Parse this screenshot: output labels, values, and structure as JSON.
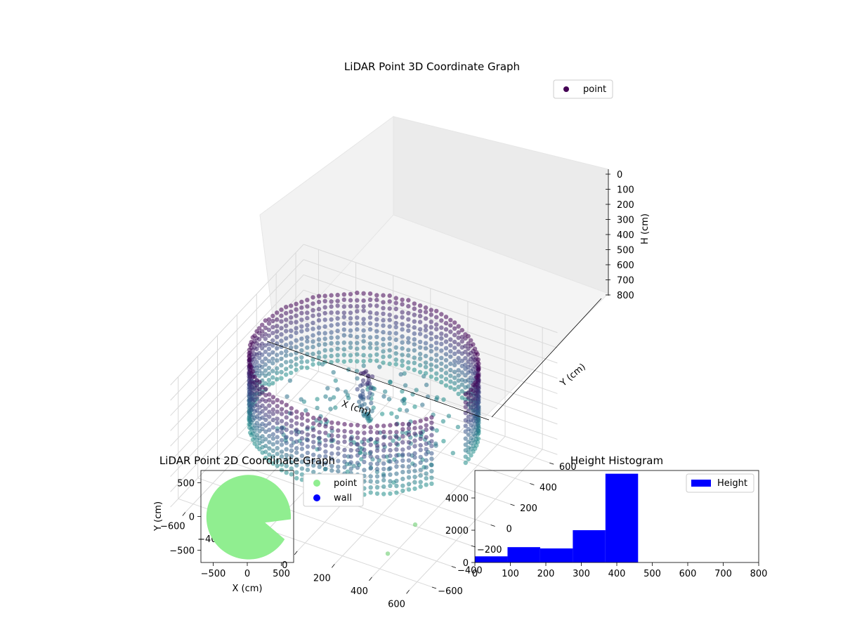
{
  "figure": {
    "colors": {
      "point_low": "#440154",
      "point_mid": "#3b528b",
      "point_high": "#21918c",
      "stray_point": "#5ec962",
      "pane": "#f2f2f2",
      "grid": "#d9d9d9",
      "point_2d": "#90ee90",
      "wall_2d": "#0000ff",
      "histogram": "#0000ff"
    }
  },
  "chart_data": [
    {
      "type": "scatter",
      "title": "LiDAR Point 3D Coordinate Graph",
      "projection": "3d",
      "xlabel": "X (cm)",
      "ylabel": "Y (cm)",
      "zlabel": "H (cm)",
      "xlim": [
        -680,
        680
      ],
      "ylim": [
        -680,
        680
      ],
      "zlim": [
        800,
        0
      ],
      "z_axis_inverted": true,
      "xticks": [
        "−600",
        "−400",
        "−200",
        "0",
        "200",
        "400",
        "600"
      ],
      "yticks": [
        "−600",
        "−400",
        "−200",
        "0",
        "200",
        "400",
        "600"
      ],
      "zticks": [
        "0",
        "100",
        "200",
        "300",
        "400",
        "500",
        "600",
        "700",
        "800"
      ],
      "colormap": "viridis",
      "grid": true,
      "legend": {
        "placement": "top-right",
        "entries": [
          "point"
        ]
      },
      "series": [
        {
          "name": "point",
          "description_of_shape": "ring-shaped wall of points at radius ~550 cm spanning heights ~0–460 cm with a central column",
          "sample_points": [
            {
              "x": 550,
              "y": 0,
              "h": 460
            },
            {
              "x": 0,
              "y": 550,
              "h": 460
            },
            {
              "x": -550,
              "y": 0,
              "h": 460
            },
            {
              "x": 0,
              "y": -550,
              "h": 460
            },
            {
              "x": 0,
              "y": 0,
              "h": 100
            },
            {
              "x": 0,
              "y": 0,
              "h": 300
            },
            {
              "x": 380,
              "y": -200,
              "h": 790
            },
            {
              "x": 380,
              "y": -480,
              "h": 790
            }
          ]
        }
      ]
    },
    {
      "type": "scatter",
      "title": "LiDAR Point 2D Coordinate Graph",
      "xlabel": "X (cm)",
      "ylabel": "Y (cm)",
      "xlim": [
        -680,
        680
      ],
      "ylim": [
        -680,
        680
      ],
      "xticks": [
        "−500",
        "0",
        "500"
      ],
      "yticks": [
        "500",
        "0",
        "−500"
      ],
      "legend": {
        "placement": "outside-right",
        "entries": [
          "point",
          "wall"
        ]
      },
      "series": [
        {
          "name": "point",
          "shape": "filled disc radius ~620 centered near (20, -20) with a notch toward +x"
        },
        {
          "name": "wall",
          "values": []
        }
      ]
    },
    {
      "type": "bar",
      "title": "Height Histogram",
      "xlabel": "",
      "ylabel": "",
      "xlim": [
        0,
        800
      ],
      "ylim": [
        0,
        5700
      ],
      "xticks": [
        "0",
        "100",
        "200",
        "300",
        "400",
        "500",
        "600",
        "700",
        "800"
      ],
      "yticks": [
        "0",
        "2000",
        "4000"
      ],
      "legend": {
        "placement": "top-right",
        "entries": [
          "Height"
        ]
      },
      "bins": [
        {
          "start": 0,
          "end": 92,
          "count": 380
        },
        {
          "start": 92,
          "end": 184,
          "count": 950
        },
        {
          "start": 184,
          "end": 276,
          "count": 870
        },
        {
          "start": 276,
          "end": 368,
          "count": 2000
        },
        {
          "start": 368,
          "end": 460,
          "count": 5500
        },
        {
          "start": 460,
          "end": 552,
          "count": 0
        },
        {
          "start": 552,
          "end": 644,
          "count": 0
        },
        {
          "start": 644,
          "end": 736,
          "count": 0
        },
        {
          "start": 736,
          "end": 800,
          "count": 3
        }
      ]
    }
  ]
}
